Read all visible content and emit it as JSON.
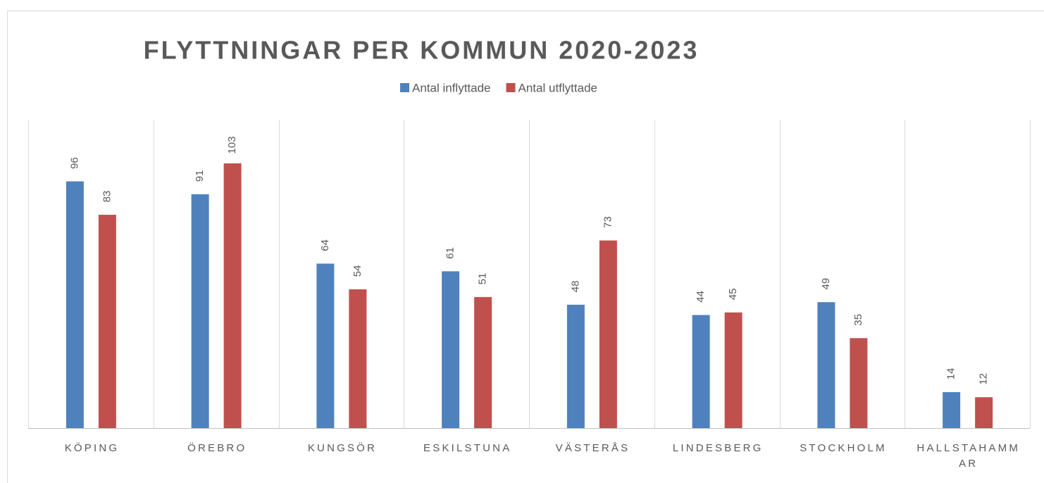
{
  "chart_data": {
    "type": "bar",
    "title": "FLYTTNINGAR PER KOMMUN 2020-2023",
    "categories": [
      "KÖPING",
      "ÖREBRO",
      "KUNGSÖR",
      "ESKILSTUNA",
      "VÄSTERÅS",
      "LINDESBERG",
      "STOCKHOLM",
      "HALLSTAHAMMAR"
    ],
    "series": [
      {
        "name": "Antal inflyttade",
        "color": "#4f81bd",
        "values": [
          96,
          91,
          64,
          61,
          48,
          44,
          49,
          14
        ]
      },
      {
        "name": "Antal utflyttade",
        "color": "#c0504d",
        "values": [
          83,
          103,
          54,
          51,
          73,
          45,
          35,
          12
        ]
      }
    ],
    "ylim": [
      0,
      120
    ],
    "legend": "top"
  }
}
